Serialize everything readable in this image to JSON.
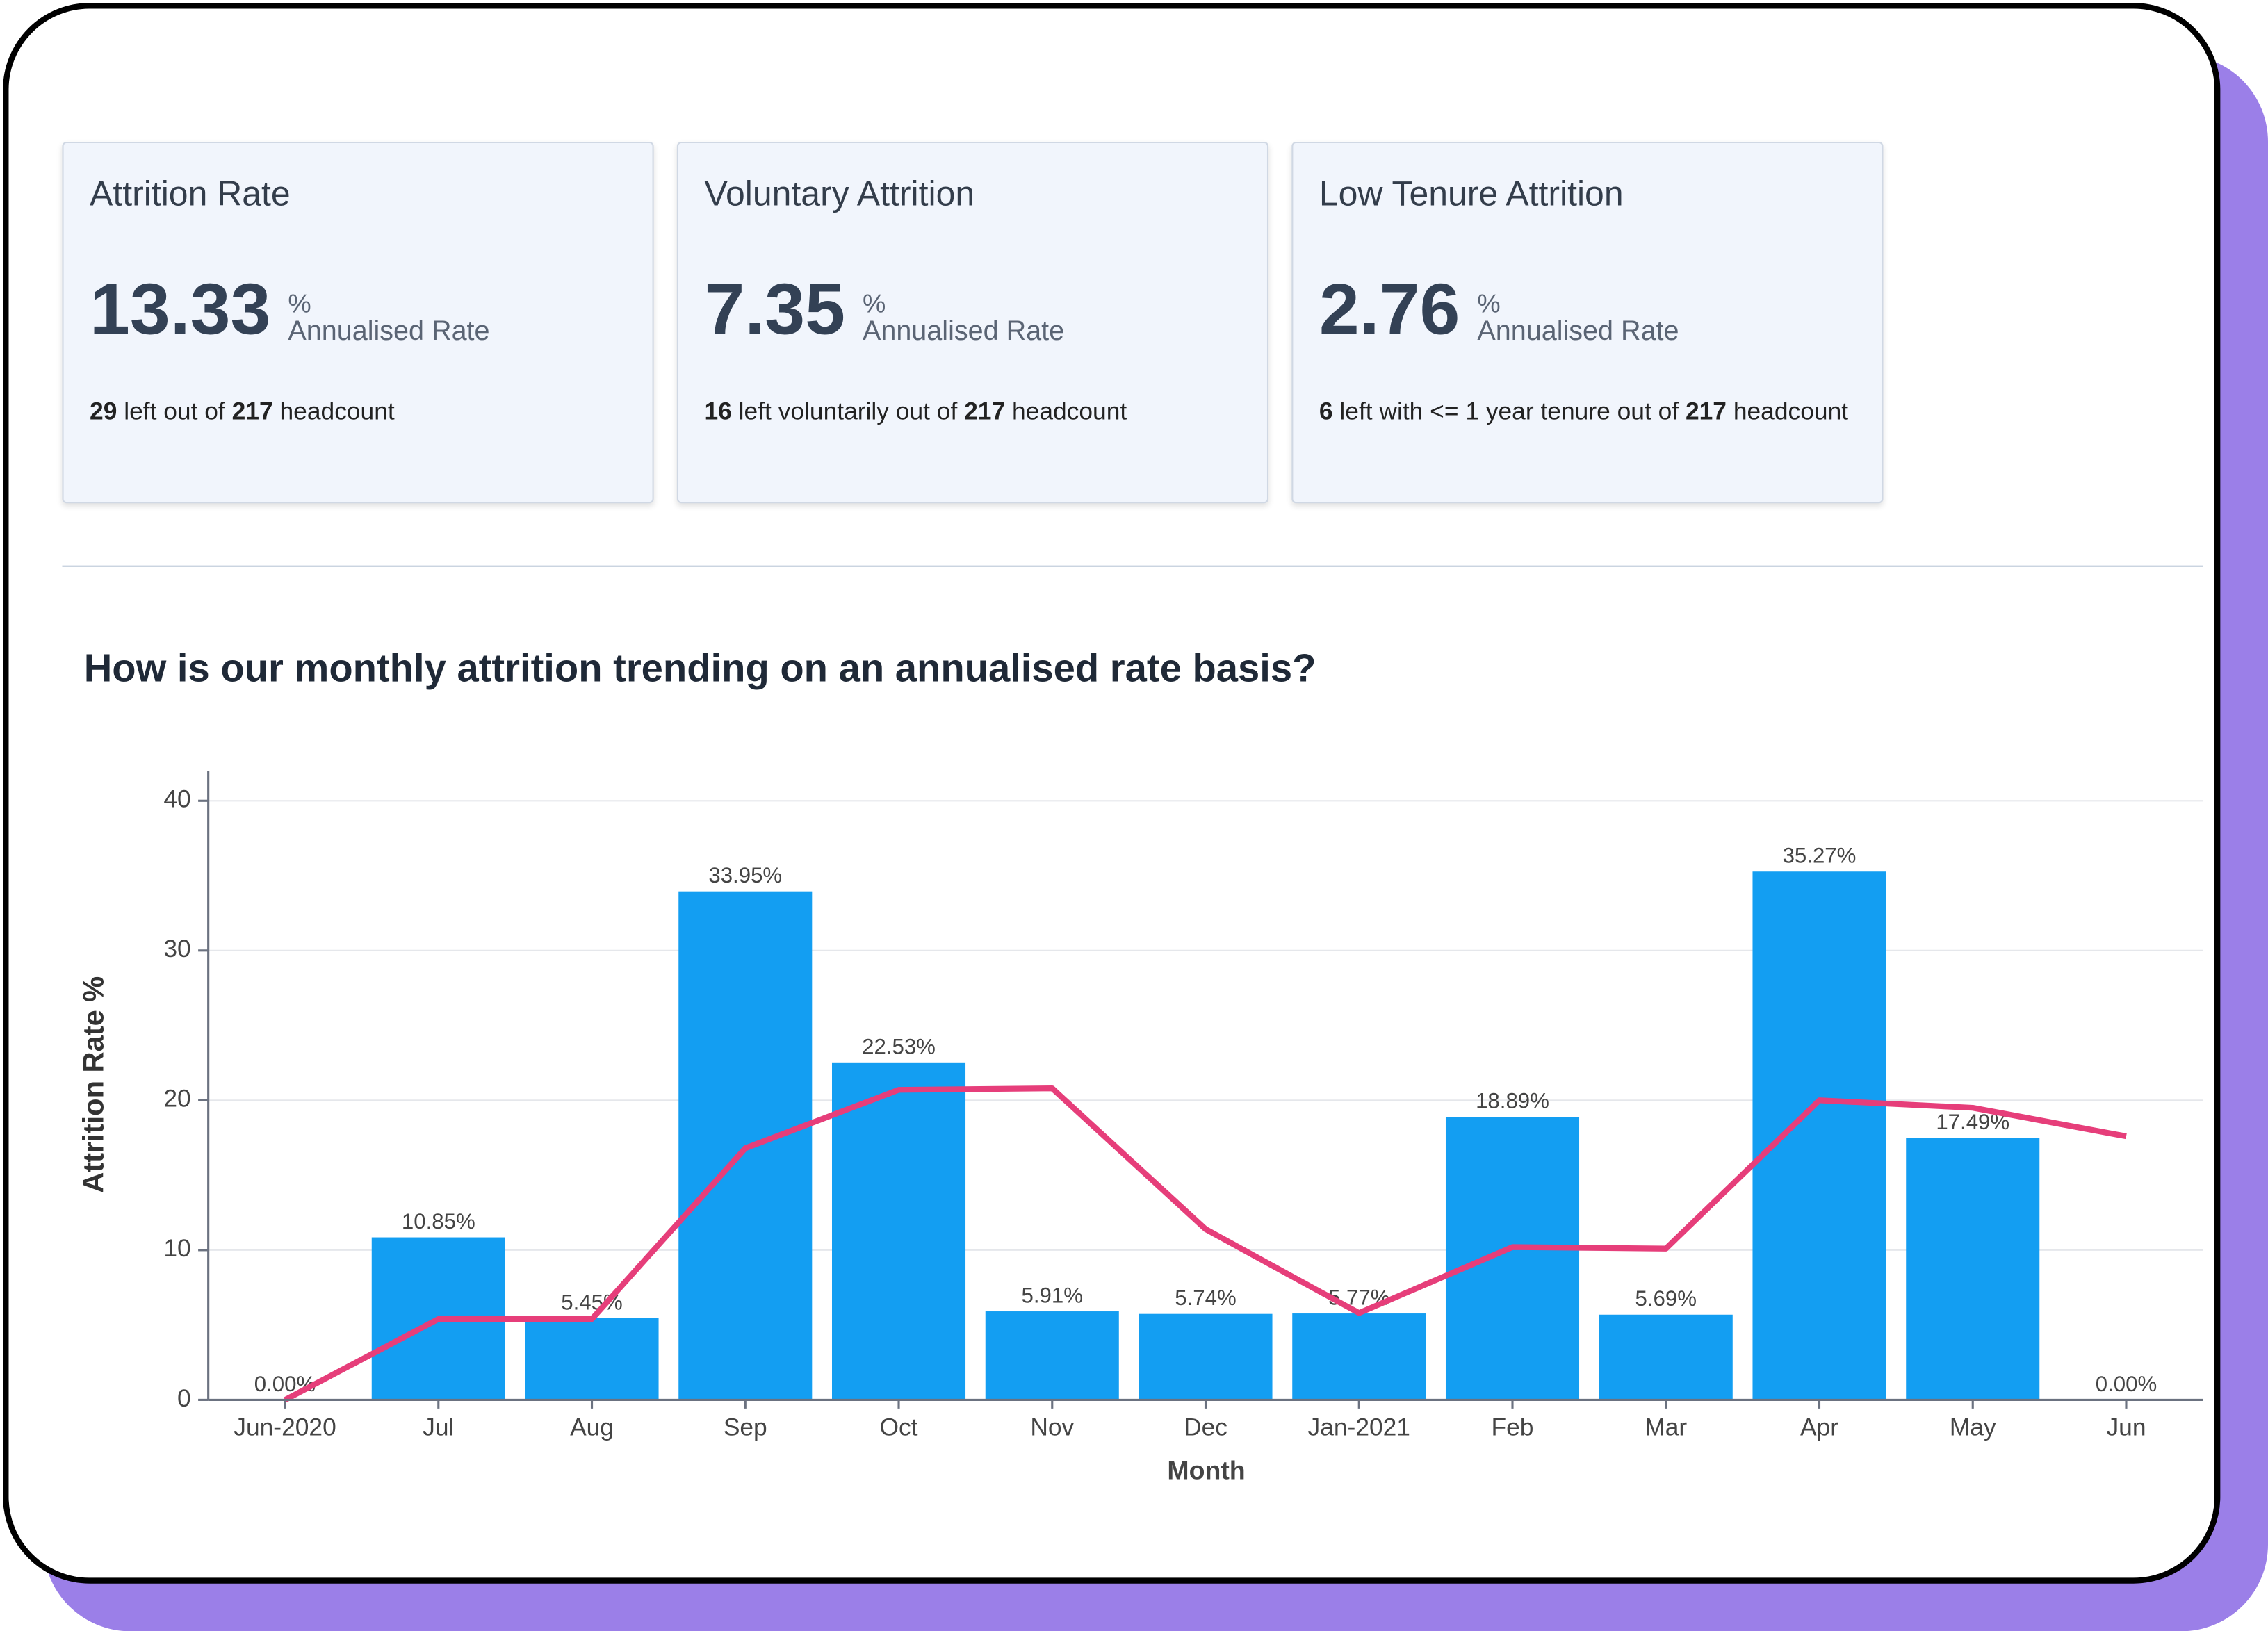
{
  "kpis": [
    {
      "title": "Attrition Rate",
      "value": 13.33,
      "unit": "%",
      "rate_label": "Annualised Rate",
      "description": [
        "29",
        " left out of ",
        "217",
        " headcount"
      ]
    },
    {
      "title": "Voluntary Attrition",
      "value": 7.35,
      "unit": "%",
      "rate_label": "Annualised Rate",
      "description": [
        "16",
        " left voluntarily out of ",
        "217",
        " headcount"
      ]
    },
    {
      "title": "Low Tenure Attrition",
      "value": 2.76,
      "unit": "%",
      "rate_label": "Annualised Rate",
      "description": [
        "6",
        " left with <= 1 year tenure out of ",
        "217",
        " headcount"
      ]
    }
  ],
  "chart_data": {
    "type": "bar",
    "title": "How is our monthly attrition trending on an annualised rate basis?",
    "x_label": "Month",
    "y_label": "Attrition Rate %",
    "categories": [
      "Jun-2020",
      "Jul",
      "Aug",
      "Sep",
      "Oct",
      "Nov",
      "Dec",
      "Jan-2021",
      "Feb",
      "Mar",
      "Apr",
      "May",
      "Jun"
    ],
    "series": [
      {
        "type": "bar",
        "color": "#139ef2",
        "values": [
          0,
          10.85,
          5.45,
          33.95,
          22.53,
          5.91,
          5.74,
          5.77,
          18.89,
          5.69,
          35.27,
          17.49,
          0
        ],
        "value_labels": [
          "0.00%",
          "10.85%",
          "5.45%",
          "33.95%",
          "22.53%",
          "5.91%",
          "5.74%",
          "5.77%",
          "18.89%",
          "5.69%",
          "35.27%",
          "17.49%",
          "0.00%"
        ]
      },
      {
        "type": "line",
        "color": "#e63e7a",
        "values": [
          0,
          5.4,
          5.4,
          16.8,
          20.7,
          20.8,
          11.4,
          5.8,
          10.2,
          10.1,
          20,
          19.5,
          17.6
        ]
      }
    ],
    "ylim": [
      0,
      42
    ],
    "yticks": [
      0,
      10,
      20,
      30,
      40
    ],
    "grid": true
  }
}
